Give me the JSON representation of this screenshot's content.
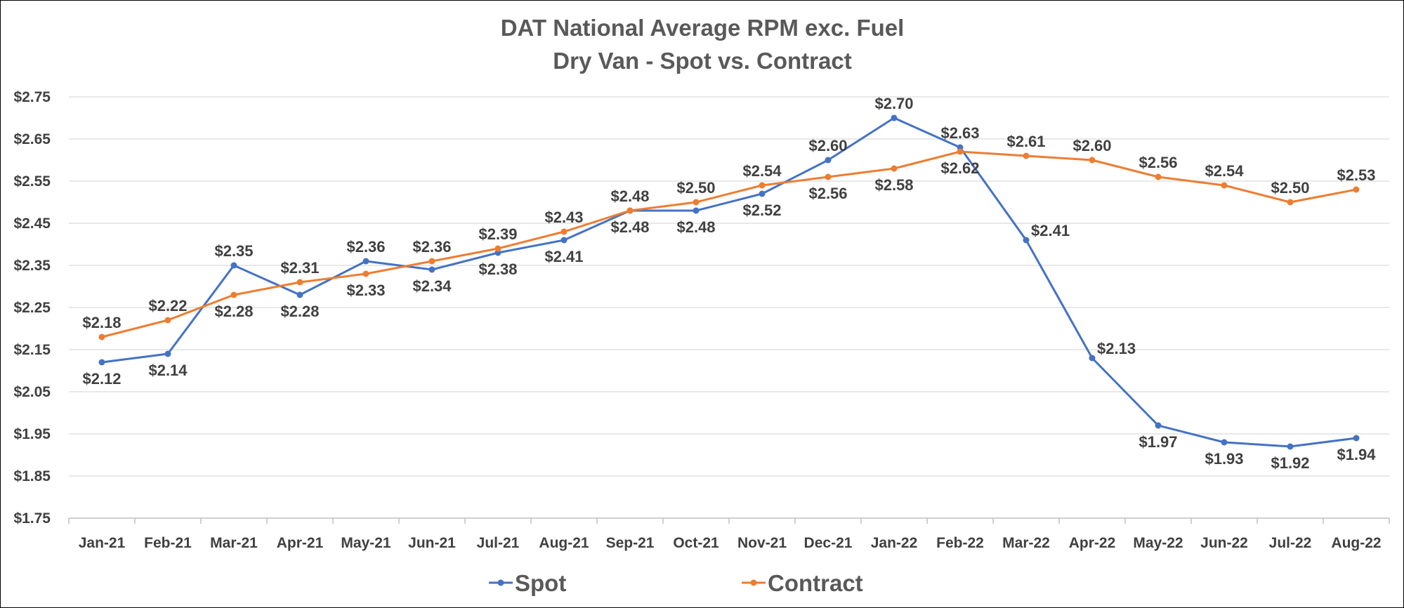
{
  "chart_data": {
    "type": "line",
    "title": "DAT National Average RPM exc. Fuel",
    "subtitle": "Dry Van - Spot vs. Contract",
    "categories": [
      "Jan-21",
      "Feb-21",
      "Mar-21",
      "Apr-21",
      "May-21",
      "Jun-21",
      "Jul-21",
      "Aug-21",
      "Sep-21",
      "Oct-21",
      "Nov-21",
      "Dec-21",
      "Jan-22",
      "Feb-22",
      "Mar-22",
      "Apr-22",
      "May-22",
      "Jun-22",
      "Jul-22",
      "Aug-22"
    ],
    "y_ticks": [
      "$2.75",
      "$2.65",
      "$2.55",
      "$2.45",
      "$2.35",
      "$2.25",
      "$2.15",
      "$2.05",
      "$1.95",
      "$1.85",
      "$1.75"
    ],
    "ylim": [
      1.75,
      2.75
    ],
    "grid": true,
    "legend_position": "bottom",
    "series": [
      {
        "name": "Spot",
        "color": "#4472C4",
        "values": [
          2.12,
          2.14,
          2.35,
          2.28,
          2.36,
          2.34,
          2.38,
          2.41,
          2.48,
          2.48,
          2.52,
          2.6,
          2.7,
          2.63,
          2.41,
          2.13,
          1.97,
          1.93,
          1.92,
          1.94
        ],
        "labels": [
          "$2.12",
          "$2.14",
          "$2.35",
          "$2.28",
          "$2.36",
          "$2.34",
          "$2.38",
          "$2.41",
          "$2.48",
          "$2.48",
          "$2.52",
          "$2.60",
          "$2.70",
          "$2.63",
          "$2.41",
          "$2.13",
          "$1.97",
          "$1.93",
          "$1.92",
          "$1.94"
        ],
        "label_side": [
          "below",
          "below",
          "above",
          "below",
          "above",
          "below",
          "below",
          "below",
          "below",
          "below",
          "below",
          "above",
          "above",
          "above",
          "right",
          "right",
          "below",
          "below",
          "below",
          "below"
        ]
      },
      {
        "name": "Contract",
        "color": "#ED7D31",
        "values": [
          2.18,
          2.22,
          2.28,
          2.31,
          2.33,
          2.36,
          2.39,
          2.43,
          2.48,
          2.5,
          2.54,
          2.56,
          2.58,
          2.62,
          2.61,
          2.6,
          2.56,
          2.54,
          2.5,
          2.53
        ],
        "labels": [
          "$2.18",
          "$2.22",
          "$2.28",
          "$2.31",
          "$2.33",
          "$2.36",
          "$2.39",
          "$2.43",
          "$2.48",
          "$2.50",
          "$2.54",
          "$2.56",
          "$2.58",
          "$2.62",
          "$2.61",
          "$2.60",
          "$2.56",
          "$2.54",
          "$2.50",
          "$2.53"
        ],
        "label_side": [
          "above",
          "above",
          "below",
          "above",
          "below",
          "above",
          "above",
          "above",
          "above",
          "above",
          "above",
          "below",
          "below",
          "below",
          "above",
          "above",
          "above",
          "above",
          "above",
          "above"
        ]
      }
    ]
  }
}
